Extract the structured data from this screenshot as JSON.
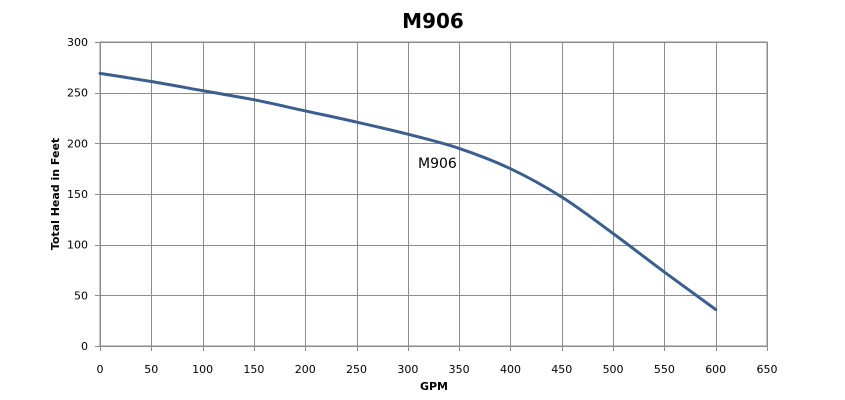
{
  "chart_data": {
    "type": "line",
    "title": "M906",
    "xlabel": "GPM",
    "ylabel": "Total Head in Feet",
    "xlim": [
      0,
      650
    ],
    "ylim": [
      0,
      300
    ],
    "x_ticks": [
      0,
      50,
      100,
      150,
      200,
      250,
      300,
      350,
      400,
      450,
      500,
      550,
      600,
      650
    ],
    "y_ticks": [
      0,
      50,
      100,
      150,
      200,
      250,
      300
    ],
    "grid": true,
    "series": [
      {
        "name": "M906",
        "color": "#3a5f8f",
        "x": [
          0,
          50,
          100,
          150,
          200,
          250,
          300,
          350,
          400,
          450,
          500,
          550,
          600
        ],
        "y": [
          269,
          261,
          252,
          243,
          232,
          221,
          209,
          195,
          175,
          147,
          111,
          73,
          36
        ]
      }
    ]
  }
}
